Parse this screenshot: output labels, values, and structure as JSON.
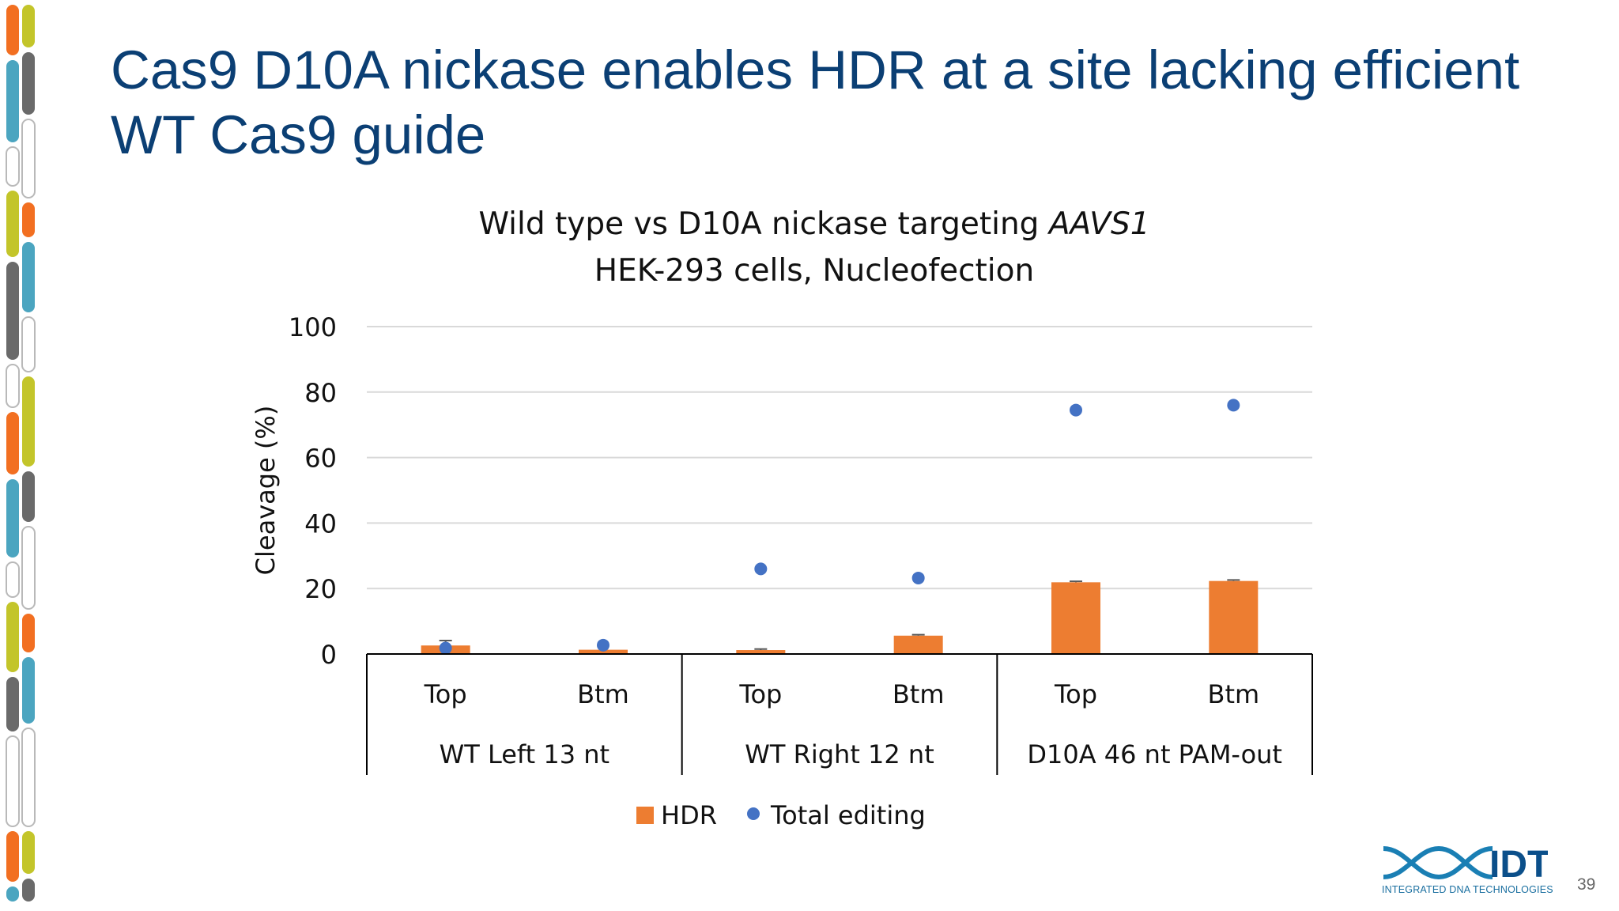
{
  "slide": {
    "title_line1": "Cas9 D10A nickase enables HDR at a site lacking efficient",
    "title_line2": "WT Cas9 guide",
    "page_number": "39"
  },
  "logo": {
    "wordmark": "IDT",
    "tagline": "INTEGRATED DNA TECHNOLOGIES"
  },
  "colors": {
    "title": "#0b3f74",
    "hdr_bar": "#ed7d31",
    "total_editing_dot": "#4472c4",
    "strip": [
      "#f26f21",
      "#4ba5c0",
      "#0b4f8a",
      "#c3c52a",
      "#6a6a6a",
      "#d6e04a"
    ]
  },
  "chart_data": {
    "type": "bar",
    "title_line1": "Wild type vs D10A nickase targeting ",
    "title_italic": "AAVS1",
    "title_line2": "HEK-293 cells, Nucleofection",
    "ylabel": "Cleavage (%)",
    "xlabel": "",
    "ylim": [
      0,
      100
    ],
    "yticks": [
      "0",
      "20",
      "40",
      "60",
      "80",
      "100"
    ],
    "grid": true,
    "legend_position": "bottom",
    "categories": [
      "Top",
      "Btm",
      "Top",
      "Btm",
      "Top",
      "Btm"
    ],
    "groups": [
      {
        "label": "WT Left 13 nt",
        "categories": [
          "Top",
          "Btm"
        ]
      },
      {
        "label": "WT Right 12 nt",
        "categories": [
          "Top",
          "Btm"
        ]
      },
      {
        "label": "D10A 46 nt PAM-out",
        "categories": [
          "Top",
          "Btm"
        ]
      }
    ],
    "series": [
      {
        "name": "HDR",
        "kind": "bar",
        "values": [
          2.6,
          1.3,
          1.2,
          5.6,
          21.9,
          22.3
        ],
        "errors": [
          1.5,
          0,
          0.3,
          0.3,
          0.3,
          0.3
        ]
      },
      {
        "name": "Total editing",
        "kind": "scatter",
        "values": [
          1.8,
          2.7,
          26.0,
          23.2,
          74.5,
          76.0
        ]
      }
    ]
  }
}
